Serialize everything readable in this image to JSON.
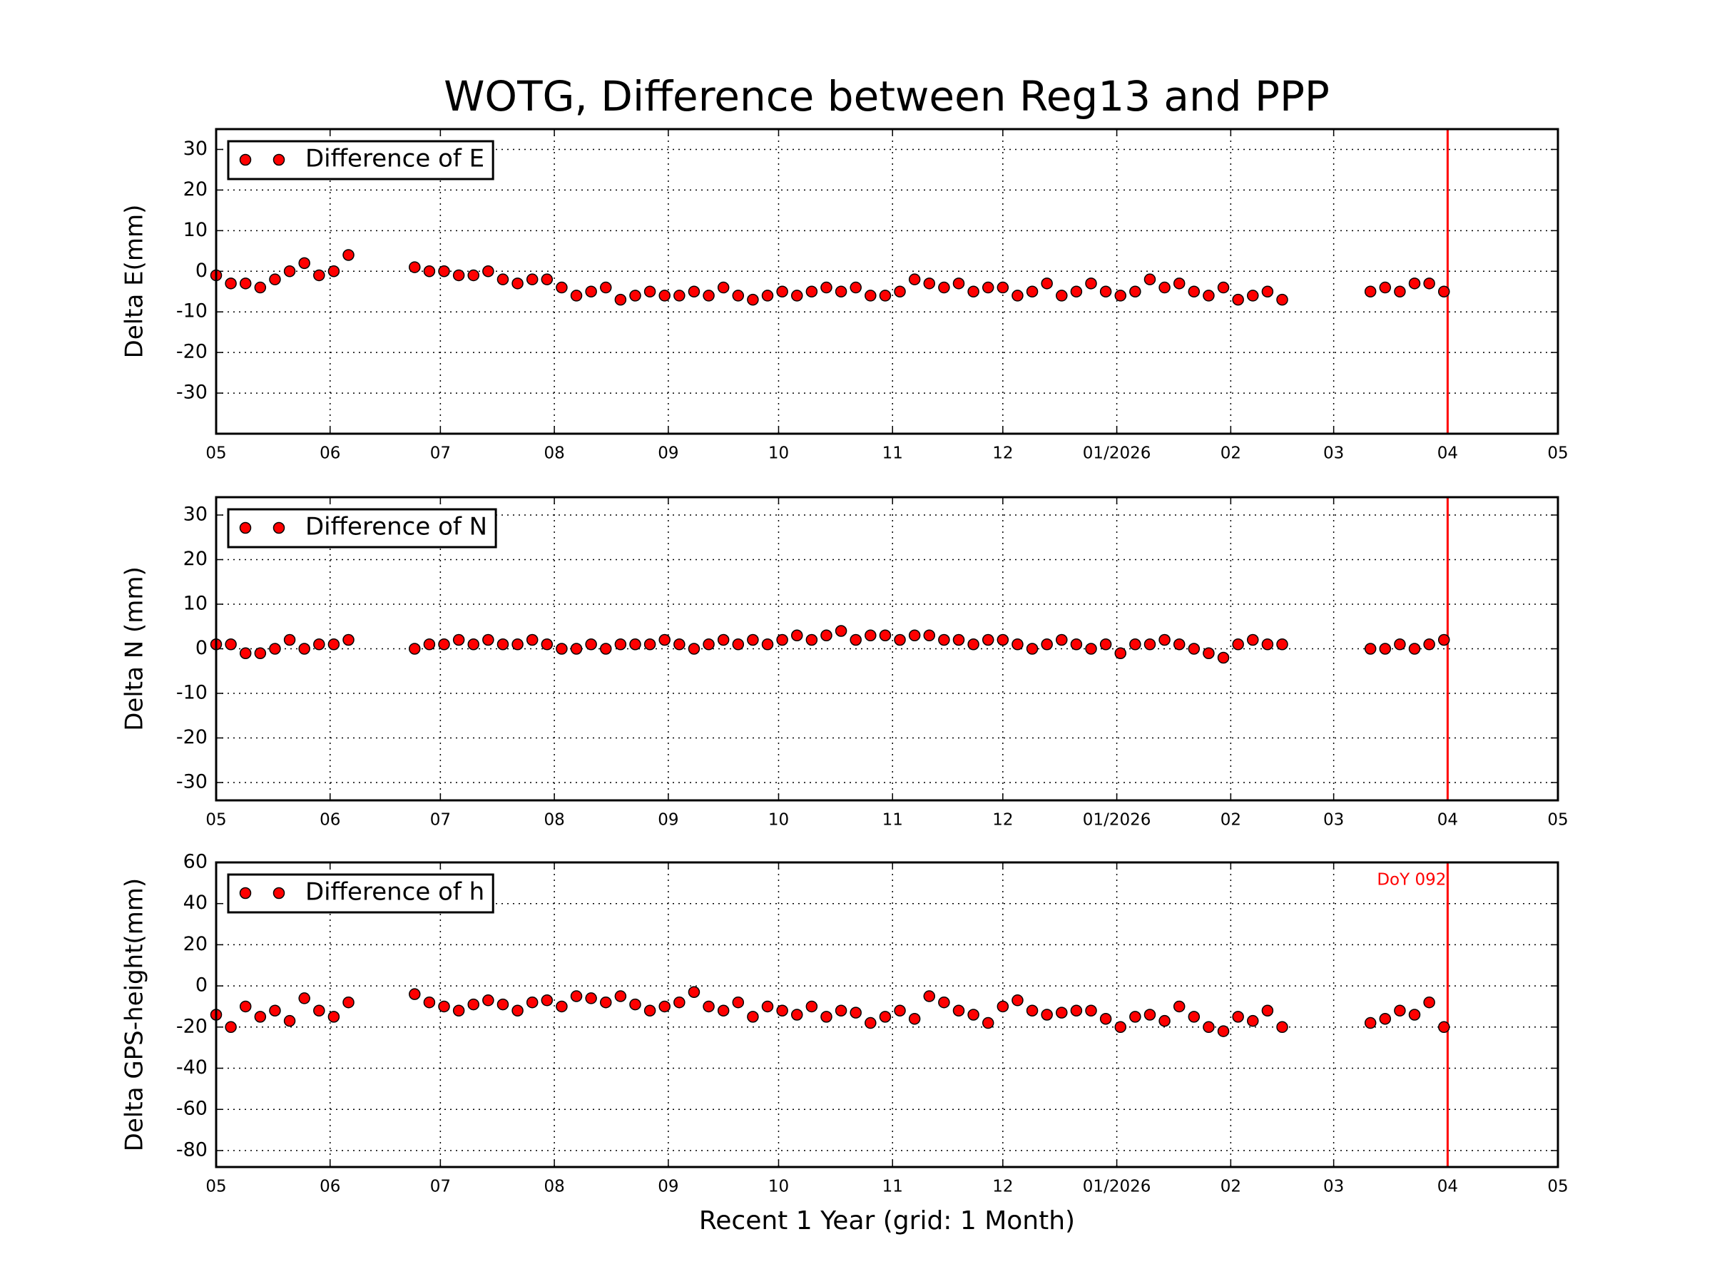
{
  "chart_data": [
    {
      "type": "scatter",
      "title": "WOTG, Difference between Reg13 and PPP",
      "ylabel": "Delta E(mm)",
      "xlim": [
        0,
        365
      ],
      "xticks": [
        {
          "value": 0,
          "label": "05"
        },
        {
          "value": 31,
          "label": "06"
        },
        {
          "value": 61,
          "label": "07"
        },
        {
          "value": 92,
          "label": "08"
        },
        {
          "value": 123,
          "label": "09"
        },
        {
          "value": 153,
          "label": "10"
        },
        {
          "value": 184,
          "label": "11"
        },
        {
          "value": 214,
          "label": "12"
        },
        {
          "value": 245,
          "label": "01/2026"
        },
        {
          "value": 276,
          "label": "02"
        },
        {
          "value": 304,
          "label": "03"
        },
        {
          "value": 335,
          "label": "04"
        },
        {
          "value": 365,
          "label": "05"
        }
      ],
      "ylim": [
        -40,
        35
      ],
      "yticks": [
        -30,
        -20,
        -10,
        0,
        10,
        20,
        30
      ],
      "grid": true,
      "legend": "upper left",
      "vline_x": 335,
      "vline_color": "#ff0000",
      "series": [
        {
          "name": "Difference of E",
          "color": "#ff0000",
          "x": [
            0,
            4,
            8,
            12,
            16,
            20,
            24,
            28,
            32,
            36,
            54,
            58,
            62,
            66,
            70,
            74,
            78,
            82,
            86,
            90,
            94,
            98,
            102,
            106,
            110,
            114,
            118,
            122,
            126,
            130,
            134,
            138,
            142,
            146,
            150,
            154,
            158,
            162,
            166,
            170,
            174,
            178,
            182,
            186,
            190,
            194,
            198,
            202,
            206,
            210,
            214,
            218,
            222,
            226,
            230,
            234,
            238,
            242,
            246,
            250,
            254,
            258,
            262,
            266,
            270,
            274,
            278,
            282,
            286,
            290,
            314,
            318,
            322,
            326,
            330,
            334
          ],
          "values": [
            -1,
            -3,
            -3,
            -4,
            -2,
            0,
            2,
            -1,
            0,
            4,
            1,
            0,
            0,
            -1,
            -1,
            0,
            -2,
            -3,
            -2,
            -2,
            -4,
            -6,
            -5,
            -4,
            -7,
            -6,
            -5,
            -6,
            -6,
            -5,
            -6,
            -4,
            -6,
            -7,
            -6,
            -5,
            -6,
            -5,
            -4,
            -5,
            -4,
            -6,
            -6,
            -5,
            -2,
            -3,
            -4,
            -3,
            -5,
            -4,
            -4,
            -6,
            -5,
            -3,
            -6,
            -5,
            -3,
            -5,
            -6,
            -5,
            -2,
            -4,
            -3,
            -5,
            -6,
            -4,
            -7,
            -6,
            -5,
            -7,
            -5,
            -4,
            -5,
            -3,
            -3,
            -5
          ]
        }
      ]
    },
    {
      "type": "scatter",
      "ylabel": "Delta N (mm)",
      "xlim": [
        0,
        365
      ],
      "xticks": [
        {
          "value": 0,
          "label": "05"
        },
        {
          "value": 31,
          "label": "06"
        },
        {
          "value": 61,
          "label": "07"
        },
        {
          "value": 92,
          "label": "08"
        },
        {
          "value": 123,
          "label": "09"
        },
        {
          "value": 153,
          "label": "10"
        },
        {
          "value": 184,
          "label": "11"
        },
        {
          "value": 214,
          "label": "12"
        },
        {
          "value": 245,
          "label": "01/2026"
        },
        {
          "value": 276,
          "label": "02"
        },
        {
          "value": 304,
          "label": "03"
        },
        {
          "value": 335,
          "label": "04"
        },
        {
          "value": 365,
          "label": "05"
        }
      ],
      "ylim": [
        -34,
        34
      ],
      "yticks": [
        -30,
        -20,
        -10,
        0,
        10,
        20,
        30
      ],
      "grid": true,
      "legend": "upper left",
      "vline_x": 335,
      "vline_color": "#ff0000",
      "series": [
        {
          "name": "Difference of N",
          "color": "#ff0000",
          "x": [
            0,
            4,
            8,
            12,
            16,
            20,
            24,
            28,
            32,
            36,
            54,
            58,
            62,
            66,
            70,
            74,
            78,
            82,
            86,
            90,
            94,
            98,
            102,
            106,
            110,
            114,
            118,
            122,
            126,
            130,
            134,
            138,
            142,
            146,
            150,
            154,
            158,
            162,
            166,
            170,
            174,
            178,
            182,
            186,
            190,
            194,
            198,
            202,
            206,
            210,
            214,
            218,
            222,
            226,
            230,
            234,
            238,
            242,
            246,
            250,
            254,
            258,
            262,
            266,
            270,
            274,
            278,
            282,
            286,
            290,
            314,
            318,
            322,
            326,
            330,
            334
          ],
          "values": [
            1,
            1,
            -1,
            -1,
            0,
            2,
            0,
            1,
            1,
            2,
            0,
            1,
            1,
            2,
            1,
            2,
            1,
            1,
            2,
            1,
            0,
            0,
            1,
            0,
            1,
            1,
            1,
            2,
            1,
            0,
            1,
            2,
            1,
            2,
            1,
            2,
            3,
            2,
            3,
            4,
            2,
            3,
            3,
            2,
            3,
            3,
            2,
            2,
            1,
            2,
            2,
            1,
            0,
            1,
            2,
            1,
            0,
            1,
            -1,
            1,
            1,
            2,
            1,
            0,
            -1,
            -2,
            1,
            2,
            1,
            1,
            0,
            0,
            1,
            0,
            1,
            2
          ]
        }
      ]
    },
    {
      "type": "scatter",
      "ylabel": "Delta GPS-height(mm)",
      "xlabel": "Recent 1 Year (grid: 1 Month)",
      "annotation": "DoY 092",
      "xlim": [
        0,
        365
      ],
      "xticks": [
        {
          "value": 0,
          "label": "05"
        },
        {
          "value": 31,
          "label": "06"
        },
        {
          "value": 61,
          "label": "07"
        },
        {
          "value": 92,
          "label": "08"
        },
        {
          "value": 123,
          "label": "09"
        },
        {
          "value": 153,
          "label": "10"
        },
        {
          "value": 184,
          "label": "11"
        },
        {
          "value": 214,
          "label": "12"
        },
        {
          "value": 245,
          "label": "01/2026"
        },
        {
          "value": 276,
          "label": "02"
        },
        {
          "value": 304,
          "label": "03"
        },
        {
          "value": 335,
          "label": "04"
        },
        {
          "value": 365,
          "label": "05"
        }
      ],
      "ylim": [
        -88,
        60
      ],
      "yticks": [
        -80,
        -60,
        -40,
        -20,
        0,
        20,
        40,
        60
      ],
      "grid": true,
      "legend": "upper left",
      "vline_x": 335,
      "vline_color": "#ff0000",
      "series": [
        {
          "name": "Difference of h",
          "color": "#ff0000",
          "x": [
            0,
            4,
            8,
            12,
            16,
            20,
            24,
            28,
            32,
            36,
            54,
            58,
            62,
            66,
            70,
            74,
            78,
            82,
            86,
            90,
            94,
            98,
            102,
            106,
            110,
            114,
            118,
            122,
            126,
            130,
            134,
            138,
            142,
            146,
            150,
            154,
            158,
            162,
            166,
            170,
            174,
            178,
            182,
            186,
            190,
            194,
            198,
            202,
            206,
            210,
            214,
            218,
            222,
            226,
            230,
            234,
            238,
            242,
            246,
            250,
            254,
            258,
            262,
            266,
            270,
            274,
            278,
            282,
            286,
            290,
            314,
            318,
            322,
            326,
            330,
            334
          ],
          "values": [
            -14,
            -20,
            -10,
            -15,
            -12,
            -17,
            -6,
            -12,
            -15,
            -8,
            -4,
            -8,
            -10,
            -12,
            -9,
            -7,
            -9,
            -12,
            -8,
            -7,
            -10,
            -5,
            -6,
            -8,
            -5,
            -9,
            -12,
            -10,
            -8,
            -3,
            -10,
            -12,
            -8,
            -15,
            -10,
            -12,
            -14,
            -10,
            -15,
            -12,
            -13,
            -18,
            -15,
            -12,
            -16,
            -5,
            -8,
            -12,
            -14,
            -18,
            -10,
            -7,
            -12,
            -14,
            -13,
            -12,
            -12,
            -16,
            -20,
            -15,
            -14,
            -17,
            -10,
            -15,
            -20,
            -22,
            -15,
            -17,
            -12,
            -20,
            -18,
            -16,
            -12,
            -14,
            -8,
            -20
          ]
        }
      ]
    }
  ]
}
